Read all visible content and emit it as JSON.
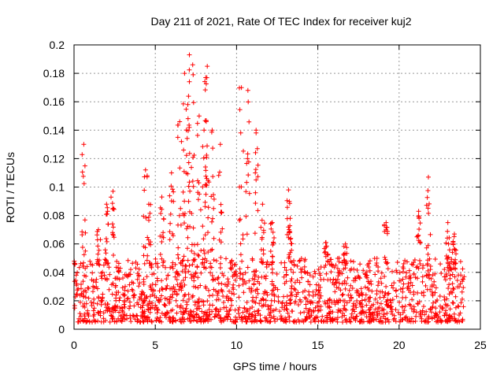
{
  "chart_data": {
    "type": "scatter",
    "title": "Day 211 of 2021, Rate Of TEC Index for receiver kuj2",
    "xlabel": "GPS time / hours",
    "ylabel": "ROTI / TECUs",
    "xlim": [
      0,
      25
    ],
    "ylim": [
      0,
      0.2
    ],
    "xticks": [
      "0",
      "5",
      "10",
      "15",
      "20",
      "25"
    ],
    "yticks": [
      "0",
      "0.02",
      "0.04",
      "0.06",
      "0.08",
      "0.1",
      "0.12",
      "0.14",
      "0.16",
      "0.18",
      "0.2"
    ],
    "grid": true,
    "marker": "+",
    "series": [
      {
        "name": "ROTI",
        "color": "#ff0000",
        "peaks": [
          {
            "x": 0.6,
            "y": 0.13
          },
          {
            "x": 1.5,
            "y": 0.07
          },
          {
            "x": 2.0,
            "y": 0.088
          },
          {
            "x": 2.4,
            "y": 0.097
          },
          {
            "x": 4.4,
            "y": 0.112
          },
          {
            "x": 4.6,
            "y": 0.088
          },
          {
            "x": 5.4,
            "y": 0.093
          },
          {
            "x": 6.0,
            "y": 0.11
          },
          {
            "x": 6.5,
            "y": 0.146
          },
          {
            "x": 6.8,
            "y": 0.18
          },
          {
            "x": 7.0,
            "y": 0.158
          },
          {
            "x": 7.1,
            "y": 0.193
          },
          {
            "x": 7.3,
            "y": 0.186
          },
          {
            "x": 7.7,
            "y": 0.15
          },
          {
            "x": 8.0,
            "y": 0.14
          },
          {
            "x": 8.1,
            "y": 0.177
          },
          {
            "x": 8.2,
            "y": 0.185
          },
          {
            "x": 8.5,
            "y": 0.14
          },
          {
            "x": 9.0,
            "y": 0.13
          },
          {
            "x": 10.3,
            "y": 0.17
          },
          {
            "x": 10.7,
            "y": 0.168
          },
          {
            "x": 11.2,
            "y": 0.14
          },
          {
            "x": 11.6,
            "y": 0.088
          },
          {
            "x": 12.2,
            "y": 0.075
          },
          {
            "x": 13.2,
            "y": 0.098
          },
          {
            "x": 13.3,
            "y": 0.078
          },
          {
            "x": 15.5,
            "y": 0.061
          },
          {
            "x": 16.7,
            "y": 0.06
          },
          {
            "x": 19.2,
            "y": 0.075
          },
          {
            "x": 21.2,
            "y": 0.083
          },
          {
            "x": 21.8,
            "y": 0.107
          },
          {
            "x": 23.0,
            "y": 0.075
          },
          {
            "x": 23.4,
            "y": 0.067
          }
        ],
        "baseline_range": [
          0.005,
          0.05
        ],
        "x_range": [
          0,
          24
        ]
      }
    ]
  }
}
